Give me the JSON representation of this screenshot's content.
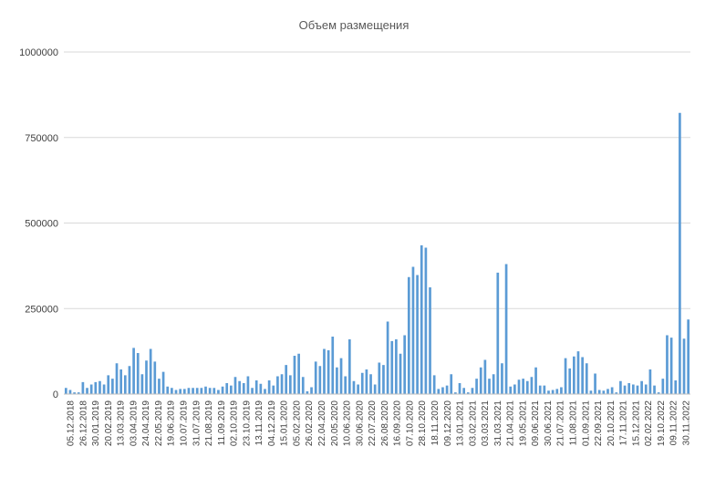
{
  "chart_data": {
    "type": "bar",
    "title": "Объем размещения",
    "xlabel": "",
    "ylabel": "",
    "ylim": [
      0,
      1000000
    ],
    "yticks": [
      0,
      250000,
      500000,
      750000,
      1000000
    ],
    "ytick_labels": [
      "0",
      "250000",
      "500000",
      "750000",
      "1000000"
    ],
    "grid": true,
    "legend": "none",
    "bar_color": "#5b9bd5",
    "x_tick_labels": [
      "05.12.2018",
      "26.12.2018",
      "30.01.2019",
      "20.02.2019",
      "13.03.2019",
      "03.04.2019",
      "24.04.2019",
      "22.05.2019",
      "19.06.2019",
      "10.07.2019",
      "31.07.2019",
      "21.08.2019",
      "11.09.2019",
      "02.10.2019",
      "23.10.2019",
      "13.11.2019",
      "04.12.2019",
      "15.01.2020",
      "05.02.2020",
      "26.02.2020",
      "22.04.2020",
      "20.05.2020",
      "10.06.2020",
      "30.06.2020",
      "22.07.2020",
      "26.08.2020",
      "16.09.2020",
      "07.10.2020",
      "28.10.2020",
      "18.11.2020",
      "09.12.2020",
      "13.01.2021",
      "03.02.2021",
      "03.03.2021",
      "31.03.2021",
      "21.04.2021",
      "19.05.2021",
      "09.06.2021",
      "30.06.2021",
      "21.07.2021",
      "11.08.2021",
      "01.09.2021",
      "22.09.2021",
      "20.10.2021",
      "17.11.2021",
      "15.12.2021",
      "02.02.2022",
      "19.10.2022",
      "09.11.2022",
      "30.11.2022"
    ],
    "values": [
      18000,
      12000,
      5000,
      5000,
      35000,
      18000,
      28000,
      35000,
      38000,
      28000,
      55000,
      45000,
      90000,
      72000,
      55000,
      82000,
      135000,
      120000,
      58000,
      98000,
      132000,
      95000,
      45000,
      65000,
      22000,
      18000,
      12000,
      15000,
      15000,
      18000,
      18000,
      18000,
      18000,
      22000,
      18000,
      18000,
      12000,
      22000,
      32000,
      25000,
      50000,
      38000,
      32000,
      52000,
      18000,
      40000,
      30000,
      15000,
      40000,
      25000,
      52000,
      58000,
      85000,
      55000,
      112000,
      118000,
      50000,
      8000,
      20000,
      95000,
      82000,
      132000,
      128000,
      168000,
      78000,
      105000,
      52000,
      160000,
      38000,
      28000,
      62000,
      72000,
      58000,
      28000,
      92000,
      85000,
      212000,
      155000,
      160000,
      118000,
      172000,
      342000,
      372000,
      348000,
      435000,
      428000,
      312000,
      55000,
      15000,
      20000,
      25000,
      58000,
      5000,
      32000,
      18000,
      5000,
      18000,
      45000,
      78000,
      100000,
      45000,
      58000,
      355000,
      90000,
      380000,
      22000,
      28000,
      42000,
      45000,
      38000,
      50000,
      78000,
      25000,
      25000,
      10000,
      12000,
      15000,
      20000,
      105000,
      75000,
      110000,
      125000,
      108000,
      90000,
      10000,
      60000,
      12000,
      10000,
      15000,
      20000,
      5000,
      38000,
      25000,
      32000,
      28000,
      25000,
      38000,
      28000,
      72000,
      25000,
      5000,
      45000,
      172000,
      165000,
      40000,
      822000,
      162000,
      218000
    ]
  }
}
